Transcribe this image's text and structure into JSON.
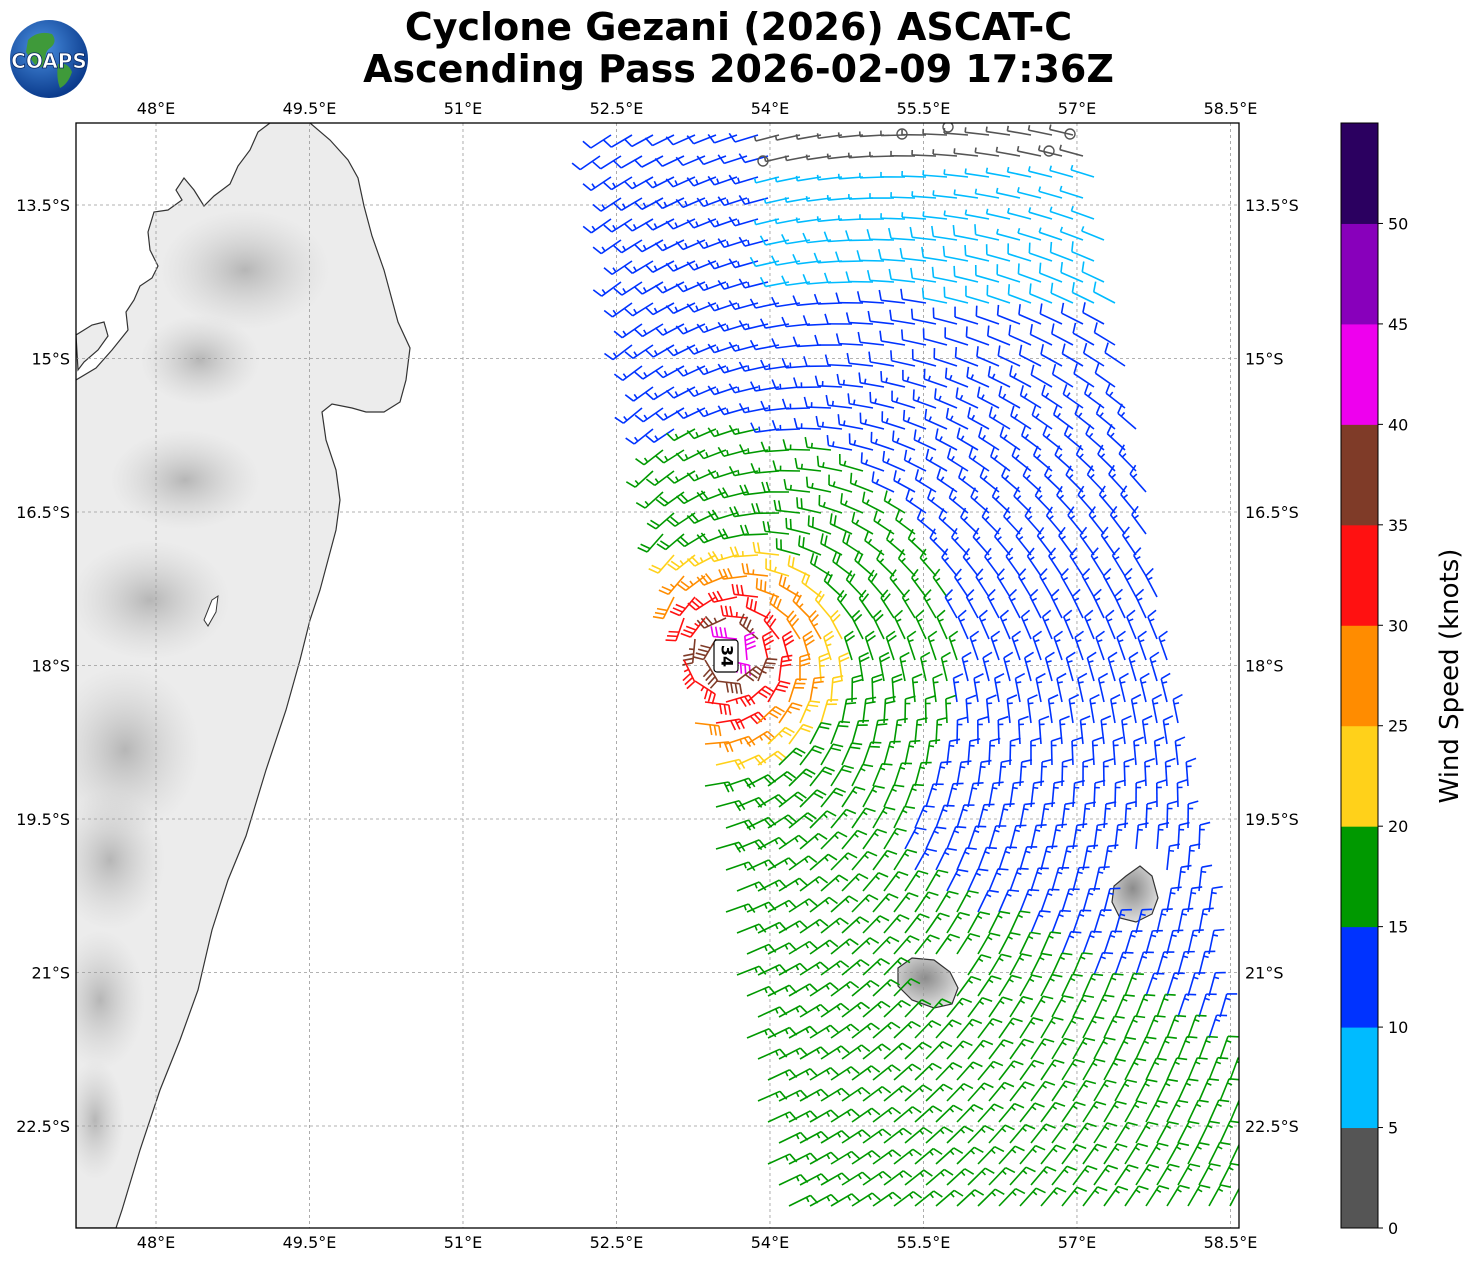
{
  "title": {
    "line1": "Cyclone Gezani (2026) ASCAT-C",
    "line2": "Ascending Pass 2026-02-09 17:36Z"
  },
  "logo": {
    "text": "COAPS",
    "icon": "earth-globe-logo"
  },
  "map": {
    "lon_range": [
      47.25,
      58.5
    ],
    "lat_range": [
      -23.5,
      -12.7
    ],
    "lon_ticks": [
      "48°E",
      "49.5°E",
      "51°E",
      "52.5°E",
      "54°E",
      "55.5°E",
      "57°E",
      "58.5°E"
    ],
    "lat_ticks": [
      "13.5°S",
      "15°S",
      "16.5°S",
      "18°S",
      "19.5°S",
      "21°S",
      "22.5°S"
    ],
    "gridlines": true,
    "storm_center_label": "34",
    "storm_center": {
      "lon": 53.6,
      "lat": -17.9
    },
    "land": [
      "Madagascar",
      "Réunion",
      "Mauritius"
    ],
    "land_shading": "grayscale terrain"
  },
  "colorbar": {
    "label": "Wind Speed (knots)",
    "ticks": [
      "0",
      "5",
      "10",
      "15",
      "20",
      "25",
      "30",
      "35",
      "40",
      "45",
      "50"
    ],
    "colors": [
      "#555555",
      "#00bbff",
      "#0033ff",
      "#009900",
      "#ffd11a",
      "#ff8c00",
      "#ff1111",
      "#7f3b28",
      "#ee00ee",
      "#8800bb",
      "#2b0060"
    ],
    "bins": [
      [
        0,
        5
      ],
      [
        5,
        10
      ],
      [
        10,
        15
      ],
      [
        15,
        20
      ],
      [
        20,
        25
      ],
      [
        25,
        30
      ],
      [
        30,
        35
      ],
      [
        35,
        40
      ],
      [
        40,
        45
      ],
      [
        45,
        50
      ],
      [
        50,
        55
      ]
    ]
  }
}
